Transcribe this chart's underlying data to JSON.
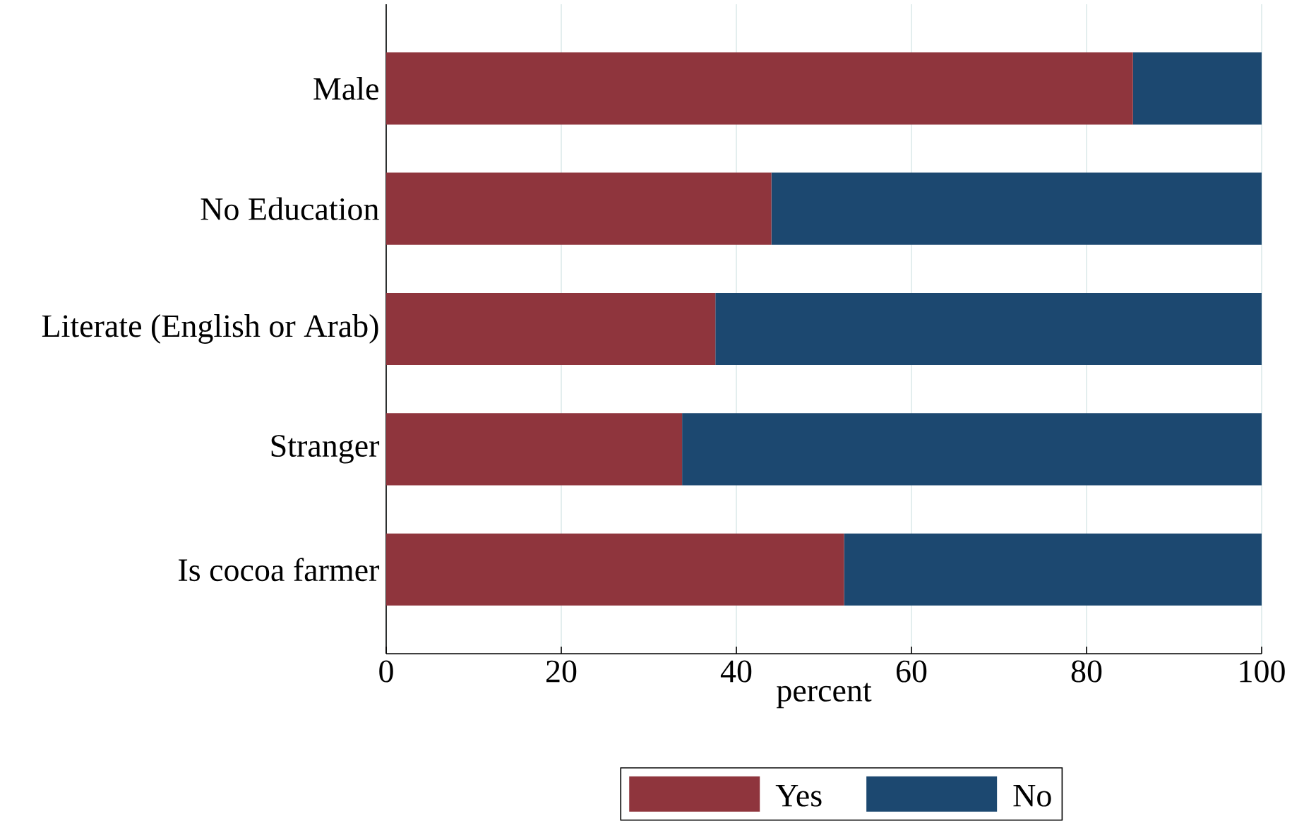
{
  "chart_data": {
    "type": "bar",
    "orientation": "horizontal",
    "stacked": true,
    "categories": [
      "Male",
      "No Education",
      "Literate (English or Arab)",
      "Stranger",
      "Is cocoa farmer"
    ],
    "series": [
      {
        "name": "Yes",
        "color": "#8f353d",
        "values": [
          85.3,
          44.0,
          37.6,
          33.8,
          52.3
        ]
      },
      {
        "name": "No",
        "color": "#1c4870",
        "values": [
          14.7,
          56.0,
          62.4,
          66.2,
          47.7
        ]
      }
    ],
    "xlabel": "percent",
    "xlim": [
      0,
      100
    ],
    "xticks": [
      0,
      20,
      40,
      60,
      80,
      100
    ],
    "grid": "x",
    "legend": "bottom"
  }
}
